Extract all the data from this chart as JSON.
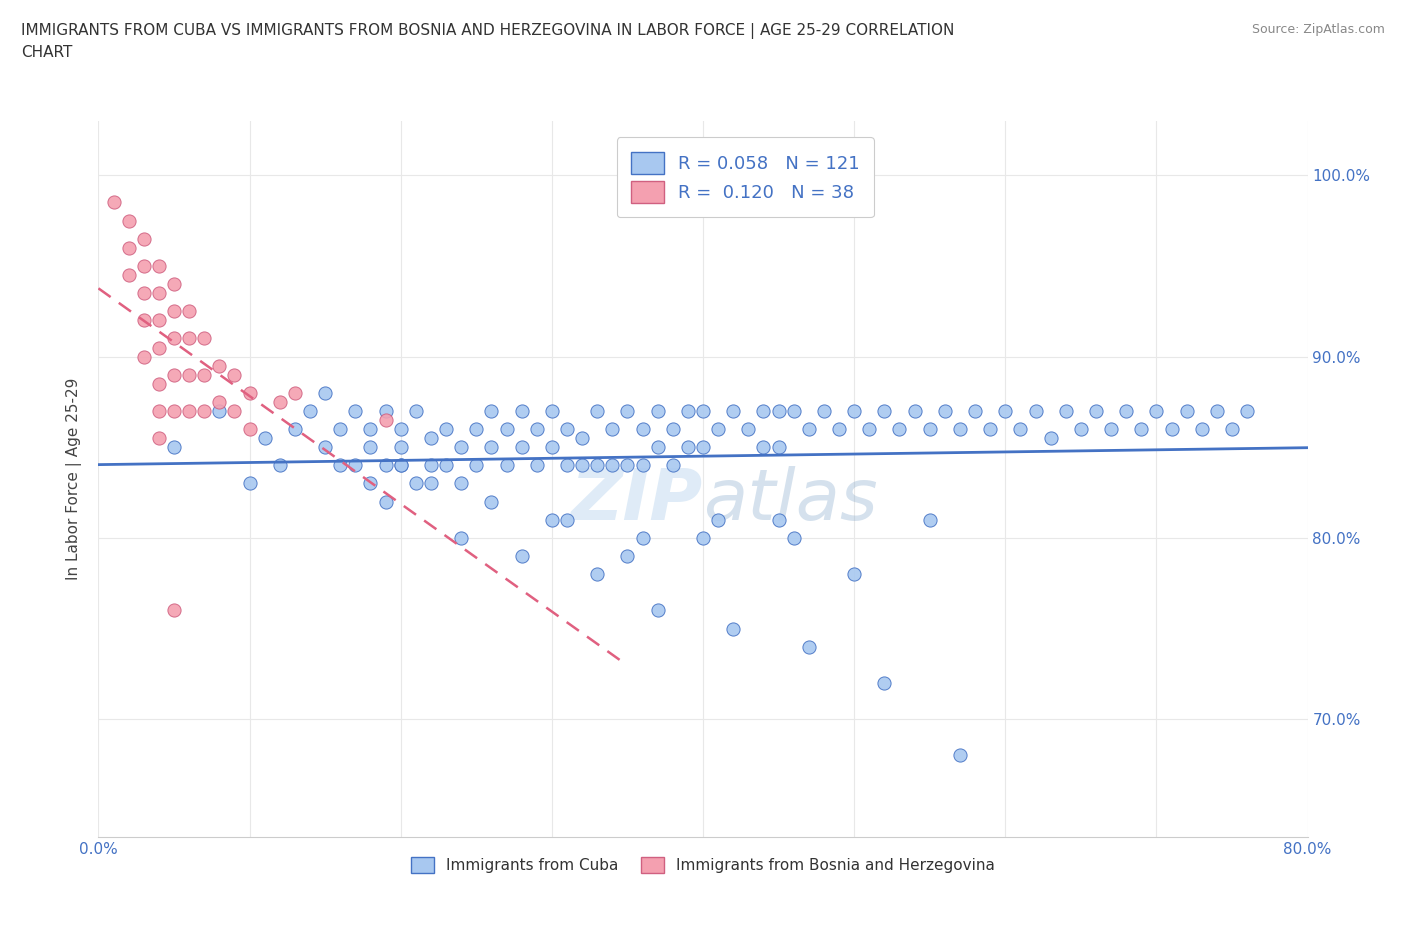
{
  "title": "IMMIGRANTS FROM CUBA VS IMMIGRANTS FROM BOSNIA AND HERZEGOVINA IN LABOR FORCE | AGE 25-29 CORRELATION\nCHART",
  "source_text": "Source: ZipAtlas.com",
  "ylabel": "In Labor Force | Age 25-29",
  "xlim": [
    0.0,
    0.8
  ],
  "ylim": [
    0.635,
    1.03
  ],
  "yticks": [
    0.7,
    0.8,
    0.9,
    1.0
  ],
  "ytick_labels": [
    "70.0%",
    "80.0%",
    "90.0%",
    "100.0%"
  ],
  "xticks": [
    0.0,
    0.1,
    0.2,
    0.3,
    0.4,
    0.5,
    0.6,
    0.7,
    0.8
  ],
  "xtick_labels": [
    "0.0%",
    "",
    "",
    "",
    "",
    "",
    "",
    "",
    "80.0%"
  ],
  "cuba_color": "#a8c8f0",
  "bosnia_color": "#f4a0b0",
  "cuba_edge_color": "#4472c4",
  "bosnia_edge_color": "#d06080",
  "cuba_line_color": "#4472c4",
  "bosnia_line_color": "#e06080",
  "R_cuba": 0.058,
  "N_cuba": 121,
  "R_bosnia": 0.12,
  "N_bosnia": 38,
  "legend_color": "#4472c4",
  "watermark": "ZIPatlas",
  "background_color": "#ffffff",
  "cuba_scatter_x": [
    0.05,
    0.08,
    0.1,
    0.11,
    0.12,
    0.13,
    0.14,
    0.15,
    0.15,
    0.16,
    0.16,
    0.17,
    0.17,
    0.18,
    0.18,
    0.18,
    0.19,
    0.19,
    0.2,
    0.2,
    0.2,
    0.21,
    0.21,
    0.22,
    0.22,
    0.23,
    0.23,
    0.24,
    0.24,
    0.25,
    0.25,
    0.26,
    0.26,
    0.27,
    0.27,
    0.28,
    0.28,
    0.29,
    0.29,
    0.3,
    0.3,
    0.31,
    0.31,
    0.32,
    0.32,
    0.33,
    0.33,
    0.34,
    0.34,
    0.35,
    0.35,
    0.36,
    0.36,
    0.37,
    0.37,
    0.38,
    0.38,
    0.39,
    0.39,
    0.4,
    0.4,
    0.41,
    0.42,
    0.43,
    0.44,
    0.44,
    0.45,
    0.45,
    0.46,
    0.47,
    0.48,
    0.49,
    0.5,
    0.51,
    0.52,
    0.53,
    0.54,
    0.55,
    0.56,
    0.57,
    0.58,
    0.59,
    0.6,
    0.61,
    0.62,
    0.63,
    0.64,
    0.65,
    0.66,
    0.67,
    0.68,
    0.69,
    0.7,
    0.71,
    0.72,
    0.73,
    0.74,
    0.75,
    0.76,
    0.19,
    0.24,
    0.28,
    0.33,
    0.37,
    0.42,
    0.47,
    0.52,
    0.57,
    0.3,
    0.35,
    0.4,
    0.45,
    0.5,
    0.22,
    0.26,
    0.31,
    0.36,
    0.41,
    0.46,
    0.55,
    0.2
  ],
  "cuba_scatter_y": [
    0.85,
    0.87,
    0.83,
    0.855,
    0.84,
    0.86,
    0.87,
    0.85,
    0.88,
    0.86,
    0.84,
    0.87,
    0.84,
    0.86,
    0.85,
    0.83,
    0.87,
    0.84,
    0.86,
    0.85,
    0.84,
    0.87,
    0.83,
    0.855,
    0.84,
    0.86,
    0.84,
    0.85,
    0.83,
    0.86,
    0.84,
    0.87,
    0.85,
    0.86,
    0.84,
    0.87,
    0.85,
    0.86,
    0.84,
    0.87,
    0.85,
    0.86,
    0.84,
    0.855,
    0.84,
    0.87,
    0.84,
    0.86,
    0.84,
    0.87,
    0.84,
    0.86,
    0.84,
    0.87,
    0.85,
    0.86,
    0.84,
    0.87,
    0.85,
    0.87,
    0.85,
    0.86,
    0.87,
    0.86,
    0.87,
    0.85,
    0.87,
    0.85,
    0.87,
    0.86,
    0.87,
    0.86,
    0.87,
    0.86,
    0.87,
    0.86,
    0.87,
    0.86,
    0.87,
    0.86,
    0.87,
    0.86,
    0.87,
    0.86,
    0.87,
    0.855,
    0.87,
    0.86,
    0.87,
    0.86,
    0.87,
    0.86,
    0.87,
    0.86,
    0.87,
    0.86,
    0.87,
    0.86,
    0.87,
    0.82,
    0.8,
    0.79,
    0.78,
    0.76,
    0.75,
    0.74,
    0.72,
    0.68,
    0.81,
    0.79,
    0.8,
    0.81,
    0.78,
    0.83,
    0.82,
    0.81,
    0.8,
    0.81,
    0.8,
    0.81,
    0.84
  ],
  "bosnia_scatter_x": [
    0.01,
    0.02,
    0.02,
    0.02,
    0.03,
    0.03,
    0.03,
    0.03,
    0.03,
    0.04,
    0.04,
    0.04,
    0.04,
    0.04,
    0.04,
    0.04,
    0.05,
    0.05,
    0.05,
    0.05,
    0.05,
    0.06,
    0.06,
    0.06,
    0.06,
    0.07,
    0.07,
    0.07,
    0.08,
    0.08,
    0.09,
    0.09,
    0.1,
    0.1,
    0.12,
    0.13,
    0.19,
    0.05
  ],
  "bosnia_scatter_y": [
    0.985,
    0.975,
    0.96,
    0.945,
    0.965,
    0.95,
    0.935,
    0.92,
    0.9,
    0.95,
    0.935,
    0.92,
    0.905,
    0.885,
    0.87,
    0.855,
    0.94,
    0.925,
    0.91,
    0.89,
    0.87,
    0.925,
    0.91,
    0.89,
    0.87,
    0.91,
    0.89,
    0.87,
    0.895,
    0.875,
    0.89,
    0.87,
    0.88,
    0.86,
    0.875,
    0.88,
    0.865,
    0.76
  ]
}
